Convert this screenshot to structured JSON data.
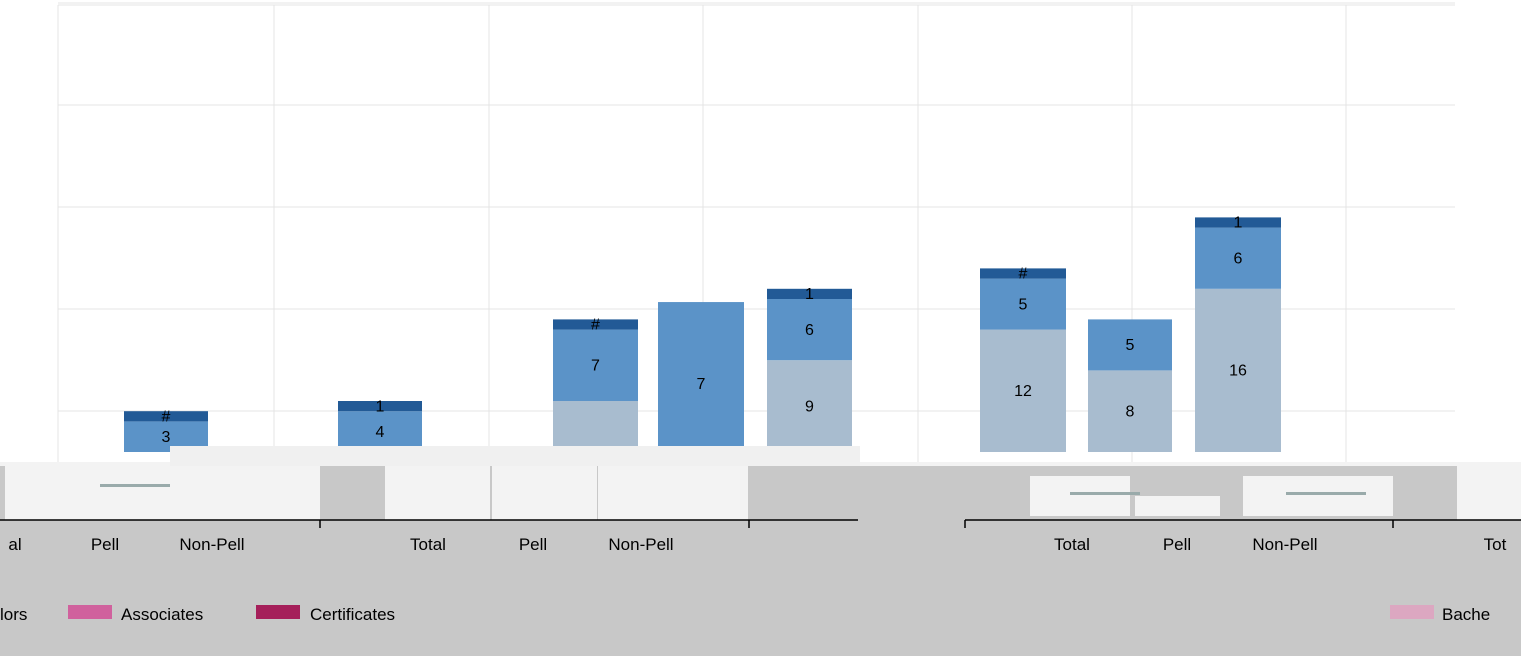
{
  "colors": {
    "plot_background": "#ffffff",
    "grid": "#e4e4e4",
    "outer_background": "#c8c8c8",
    "series_light": "#a8bccf",
    "series_mid": "#5b93c8",
    "series_dark": "#225a96",
    "bachelors": "#dca7c1",
    "associates": "#d0619d",
    "certificates": "#a51f5a"
  },
  "chart_data": {
    "type": "bar",
    "stacked": true,
    "grid": true,
    "categories": [
      "Pell",
      "Non-Pell",
      "Total",
      "Pell",
      "Non-Pell",
      "Total",
      "Pell",
      "Non-Pell"
    ],
    "category_labels_visible": [
      "al",
      "Pell",
      "Non-Pell",
      "Total",
      "Pell",
      "Non-Pell",
      "Total",
      "Pell",
      "Non-Pell",
      "Tot"
    ],
    "series": [
      {
        "color_role": "light",
        "values": [
          0,
          0,
          0,
          5,
          9,
          12,
          8,
          16
        ]
      },
      {
        "color_role": "mid",
        "values": [
          3,
          4,
          0,
          7,
          6,
          5,
          5,
          6
        ]
      },
      {
        "color_role": "dark",
        "values": [
          1,
          1,
          0,
          1,
          1,
          1,
          0,
          1
        ]
      }
    ],
    "segment_labels": [
      [
        "",
        "",
        "",
        "",
        "9",
        "12",
        "8",
        "16"
      ],
      [
        "3",
        "4",
        "",
        "7",
        "6",
        "5",
        "5",
        "6"
      ],
      [
        "#",
        "1",
        "",
        "#",
        "1",
        "#",
        "",
        "1"
      ]
    ],
    "standalone_bar": {
      "value": 7,
      "label": "7"
    },
    "ylim": [
      0,
      41
    ],
    "legend": {
      "placement": "bottom",
      "entries_left": [
        "lors",
        "Associates",
        "Certificates"
      ],
      "entries_right": [
        "Bache"
      ]
    }
  }
}
